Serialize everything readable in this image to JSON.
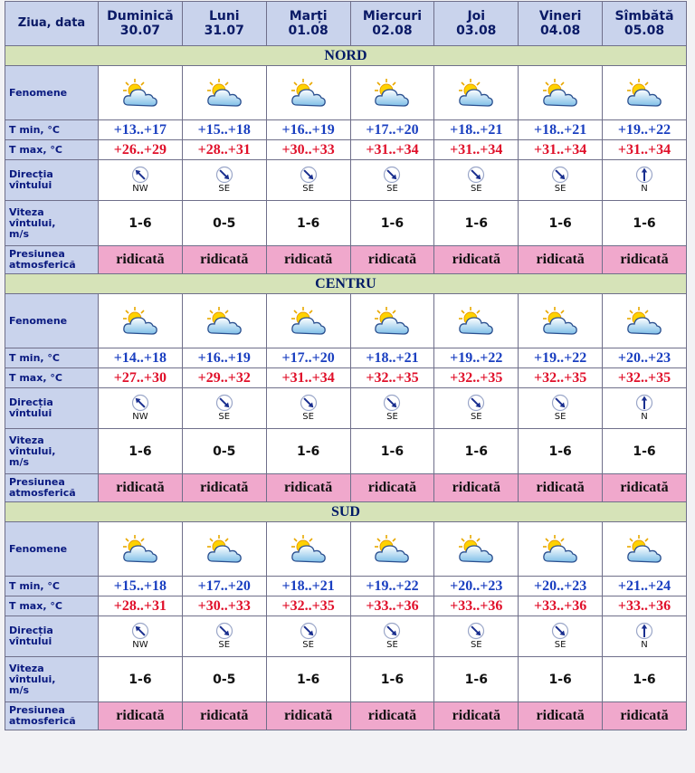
{
  "header": {
    "label": "Ziua, data",
    "days": [
      {
        "name": "Duminică",
        "date": "30.07"
      },
      {
        "name": "Luni",
        "date": "31.07"
      },
      {
        "name": "Marți",
        "date": "01.08"
      },
      {
        "name": "Miercuri",
        "date": "02.08"
      },
      {
        "name": "Joi",
        "date": "03.08"
      },
      {
        "name": "Vineri",
        "date": "04.08"
      },
      {
        "name": "Sîmbătă",
        "date": "05.08"
      }
    ]
  },
  "row_labels": {
    "phenomena": "Fenomene",
    "tmin": "T min, °C",
    "tmax": "T max, °C",
    "wind_dir_1": "Direcția",
    "wind_dir_2": "vîntului",
    "wind_speed_1": "Viteza",
    "wind_speed_2": "vîntului,",
    "wind_speed_3": "m/s",
    "pressure_1": "Presiunea",
    "pressure_2": "atmosferică"
  },
  "icon": "partly-cloudy-icon",
  "colors": {
    "header_bg": "#c9d3ec",
    "region_bg": "#d6e3b8",
    "pressure_bg": "#f0a8cc",
    "tmin_text": "#1a3fc0",
    "tmax_text": "#e0102a"
  },
  "regions": [
    {
      "name": "NORD",
      "tmin": [
        "+13..+17",
        "+15..+18",
        "+16..+19",
        "+17..+20",
        "+18..+21",
        "+18..+21",
        "+19..+22"
      ],
      "tmax": [
        "+26..+29",
        "+28..+31",
        "+30..+33",
        "+31..+34",
        "+31..+34",
        "+31..+34",
        "+31..+34"
      ],
      "wind_dir": [
        "NW",
        "SE",
        "SE",
        "SE",
        "SE",
        "SE",
        "N"
      ],
      "wind_speed": [
        "1-6",
        "0-5",
        "1-6",
        "1-6",
        "1-6",
        "1-6",
        "1-6"
      ],
      "pressure": [
        "ridicată",
        "ridicată",
        "ridicată",
        "ridicată",
        "ridicată",
        "ridicată",
        "ridicată"
      ]
    },
    {
      "name": "CENTRU",
      "tmin": [
        "+14..+18",
        "+16..+19",
        "+17..+20",
        "+18..+21",
        "+19..+22",
        "+19..+22",
        "+20..+23"
      ],
      "tmax": [
        "+27..+30",
        "+29..+32",
        "+31..+34",
        "+32..+35",
        "+32..+35",
        "+32..+35",
        "+32..+35"
      ],
      "wind_dir": [
        "NW",
        "SE",
        "SE",
        "SE",
        "SE",
        "SE",
        "N"
      ],
      "wind_speed": [
        "1-6",
        "0-5",
        "1-6",
        "1-6",
        "1-6",
        "1-6",
        "1-6"
      ],
      "pressure": [
        "ridicată",
        "ridicată",
        "ridicată",
        "ridicată",
        "ridicată",
        "ridicată",
        "ridicată"
      ]
    },
    {
      "name": "SUD",
      "tmin": [
        "+15..+18",
        "+17..+20",
        "+18..+21",
        "+19..+22",
        "+20..+23",
        "+20..+23",
        "+21..+24"
      ],
      "tmax": [
        "+28..+31",
        "+30..+33",
        "+32..+35",
        "+33..+36",
        "+33..+36",
        "+33..+36",
        "+33..+36"
      ],
      "wind_dir": [
        "NW",
        "SE",
        "SE",
        "SE",
        "SE",
        "SE",
        "N"
      ],
      "wind_speed": [
        "1-6",
        "0-5",
        "1-6",
        "1-6",
        "1-6",
        "1-6",
        "1-6"
      ],
      "pressure": [
        "ridicată",
        "ridicată",
        "ridicată",
        "ridicată",
        "ridicată",
        "ridicată",
        "ridicată"
      ]
    }
  ]
}
